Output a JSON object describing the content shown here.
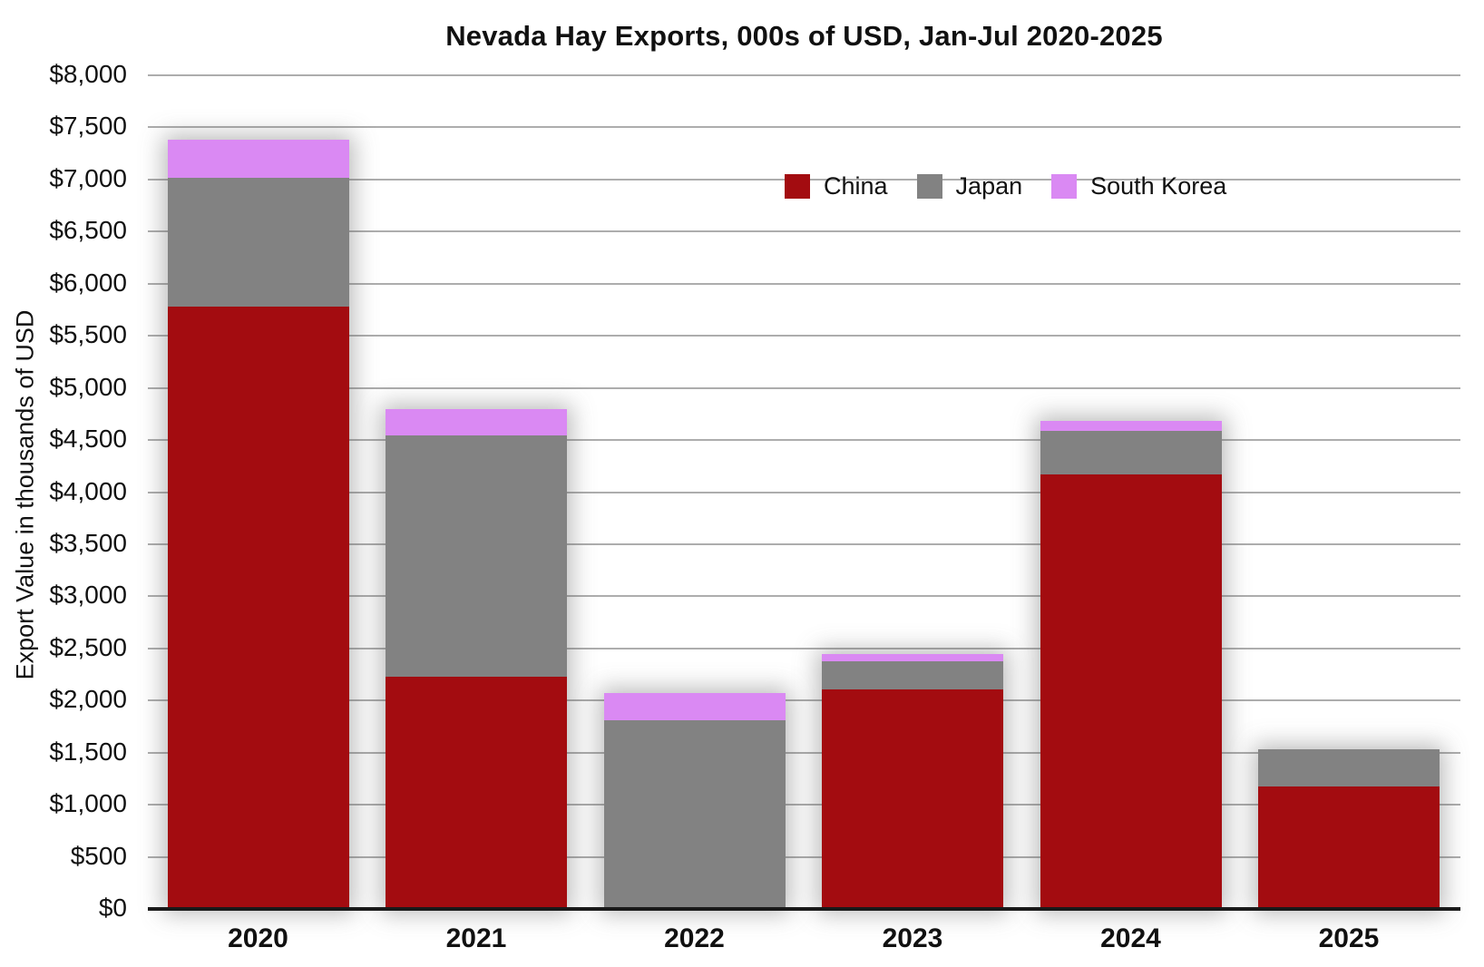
{
  "title": "Nevada Hay Exports, 000s of USD, Jan-Jul 2020-2025",
  "y_axis_title": "Export Value in thousands of USD",
  "colors": {
    "china": "#A30C10",
    "japan": "#828282",
    "south_korea": "#DA89F3",
    "gridline": "#ADADAD",
    "axis_line": "#1A1A1A",
    "text": "#111111",
    "background": "#FFFFFF"
  },
  "chart_data": {
    "type": "bar",
    "stacked": true,
    "title": "Nevada Hay Exports, 000s of USD, Jan-Jul 2020-2025",
    "xlabel": "",
    "ylabel": "Export Value in thousands of USD",
    "categories": [
      "2020",
      "2021",
      "2022",
      "2023",
      "2024",
      "2025"
    ],
    "series": [
      {
        "name": "China",
        "color": "#A30C10",
        "values": [
          5780,
          2225,
          0,
          2110,
          4170,
          1175
        ]
      },
      {
        "name": "Japan",
        "color": "#828282",
        "values": [
          1240,
          2320,
          1810,
          265,
          415,
          355
        ]
      },
      {
        "name": "South Korea",
        "color": "#DA89F3",
        "values": [
          360,
          255,
          265,
          75,
          95,
          0
        ]
      }
    ],
    "totals": [
      7380,
      4800,
      2075,
      2450,
      4680,
      1530
    ],
    "ylim": [
      0,
      8000
    ],
    "ytick_step": 500,
    "ytick_format": "$#,##0",
    "ytick_labels": [
      "$0",
      "$500",
      "$1,000",
      "$1,500",
      "$2,000",
      "$2,500",
      "$3,000",
      "$3,500",
      "$4,000",
      "$4,500",
      "$5,000",
      "$5,500",
      "$6,000",
      "$6,500",
      "$7,000",
      "$7,500",
      "$8,000"
    ],
    "grid": true,
    "legend_position": "inside-top-right"
  }
}
